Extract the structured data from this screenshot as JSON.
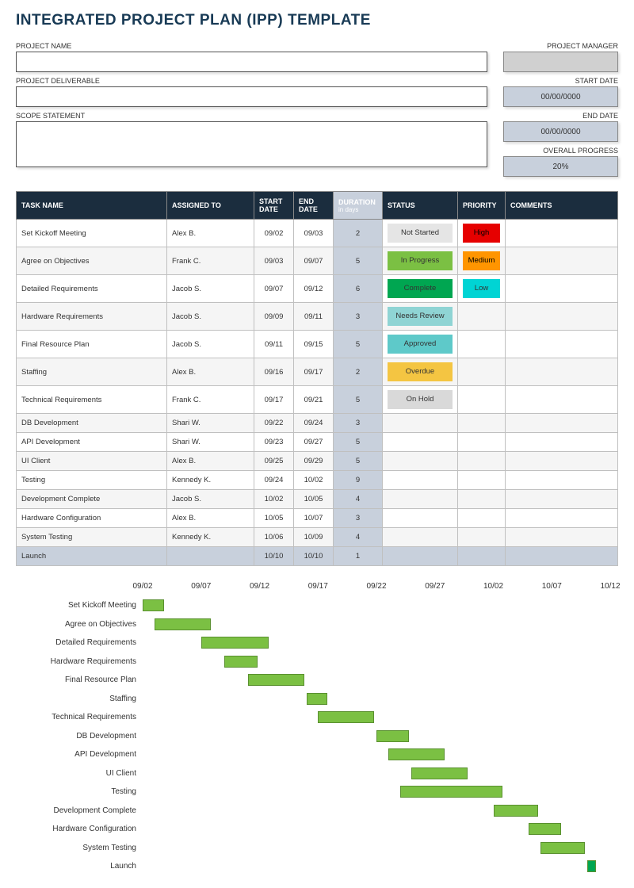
{
  "title": "INTEGRATED PROJECT PLAN (IPP) TEMPLATE",
  "labels": {
    "project_name": "PROJECT NAME",
    "project_deliverable": "PROJECT DELIVERABLE",
    "scope_statement": "SCOPE STATEMENT",
    "project_manager": "PROJECT MANAGER",
    "start_date": "START DATE",
    "end_date": "END DATE",
    "overall_progress": "OVERALL PROGRESS"
  },
  "values": {
    "start_date": "00/00/0000",
    "end_date": "00/00/0000",
    "overall_progress": "20%"
  },
  "table": {
    "headers": {
      "task": "TASK NAME",
      "assigned": "ASSIGNED TO",
      "start": "START DATE",
      "end": "END DATE",
      "duration": "DURATION",
      "duration_sub": "in days",
      "status": "STATUS",
      "priority": "PRIORITY",
      "comments": "COMMENTS"
    },
    "rows": [
      {
        "task": "Set Kickoff Meeting",
        "assigned": "Alex B.",
        "start": "09/02",
        "end": "09/03",
        "duration": "2",
        "status": "Not Started",
        "status_color": "#e5e5e5",
        "priority": "High",
        "priority_color": "#e60000"
      },
      {
        "task": "Agree on Objectives",
        "assigned": "Frank C.",
        "start": "09/03",
        "end": "09/07",
        "duration": "5",
        "status": "In Progress",
        "status_color": "#7bc043",
        "priority": "Medium",
        "priority_color": "#ff9500"
      },
      {
        "task": "Detailed Requirements",
        "assigned": "Jacob S.",
        "start": "09/07",
        "end": "09/12",
        "duration": "6",
        "status": "Complete",
        "status_color": "#00a651",
        "priority": "Low",
        "priority_color": "#00d4d4"
      },
      {
        "task": "Hardware Requirements",
        "assigned": "Jacob S.",
        "start": "09/09",
        "end": "09/11",
        "duration": "3",
        "status": "Needs Review",
        "status_color": "#8fd4d4",
        "priority": "",
        "priority_color": ""
      },
      {
        "task": "Final Resource Plan",
        "assigned": "Jacob S.",
        "start": "09/11",
        "end": "09/15",
        "duration": "5",
        "status": "Approved",
        "status_color": "#5ec9c9",
        "priority": "",
        "priority_color": ""
      },
      {
        "task": "Staffing",
        "assigned": "Alex B.",
        "start": "09/16",
        "end": "09/17",
        "duration": "2",
        "status": "Overdue",
        "status_color": "#f4c542",
        "priority": "",
        "priority_color": ""
      },
      {
        "task": "Technical Requirements",
        "assigned": "Frank C.",
        "start": "09/17",
        "end": "09/21",
        "duration": "5",
        "status": "On Hold",
        "status_color": "#d9d9d9",
        "priority": "",
        "priority_color": ""
      },
      {
        "task": "DB Development",
        "assigned": "Shari W.",
        "start": "09/22",
        "end": "09/24",
        "duration": "3",
        "status": "",
        "status_color": "",
        "priority": "",
        "priority_color": ""
      },
      {
        "task": "API Development",
        "assigned": "Shari W.",
        "start": "09/23",
        "end": "09/27",
        "duration": "5",
        "status": "",
        "status_color": "",
        "priority": "",
        "priority_color": ""
      },
      {
        "task": "UI Client",
        "assigned": "Alex B.",
        "start": "09/25",
        "end": "09/29",
        "duration": "5",
        "status": "",
        "status_color": "",
        "priority": "",
        "priority_color": ""
      },
      {
        "task": "Testing",
        "assigned": "Kennedy K.",
        "start": "09/24",
        "end": "10/02",
        "duration": "9",
        "status": "",
        "status_color": "",
        "priority": "",
        "priority_color": ""
      },
      {
        "task": "Development Complete",
        "assigned": "Jacob S.",
        "start": "10/02",
        "end": "10/05",
        "duration": "4",
        "status": "",
        "status_color": "",
        "priority": "",
        "priority_color": ""
      },
      {
        "task": "Hardware Configuration",
        "assigned": "Alex B.",
        "start": "10/05",
        "end": "10/07",
        "duration": "3",
        "status": "",
        "status_color": "",
        "priority": "",
        "priority_color": ""
      },
      {
        "task": "System Testing",
        "assigned": "Kennedy K.",
        "start": "10/06",
        "end": "10/09",
        "duration": "4",
        "status": "",
        "status_color": "",
        "priority": "",
        "priority_color": ""
      },
      {
        "task": "Launch",
        "assigned": "",
        "start": "10/10",
        "end": "10/10",
        "duration": "1",
        "status": "",
        "status_color": "",
        "priority": "",
        "priority_color": "",
        "last": true
      }
    ]
  },
  "gantt": {
    "axis_min_day": 2,
    "axis_max_day": 42,
    "ticks": [
      {
        "label": "09/02",
        "day": 2
      },
      {
        "label": "09/07",
        "day": 7
      },
      {
        "label": "09/12",
        "day": 12
      },
      {
        "label": "09/17",
        "day": 17
      },
      {
        "label": "09/22",
        "day": 22
      },
      {
        "label": "09/27",
        "day": 27
      },
      {
        "label": "10/02",
        "day": 32
      },
      {
        "label": "10/07",
        "day": 37
      },
      {
        "label": "10/12",
        "day": 42
      }
    ],
    "bar_color": "#7bc043",
    "launch_bar_color": "#00a651",
    "bars": [
      {
        "label": "Set Kickoff Meeting",
        "start": 2,
        "end": 3.8
      },
      {
        "label": "Agree on Objectives",
        "start": 3,
        "end": 7.8
      },
      {
        "label": "Detailed Requirements",
        "start": 7,
        "end": 12.8
      },
      {
        "label": "Hardware Requirements",
        "start": 9,
        "end": 11.8
      },
      {
        "label": "Final Resource Plan",
        "start": 11,
        "end": 15.8
      },
      {
        "label": "Staffing",
        "start": 16,
        "end": 17.8
      },
      {
        "label": "Technical Requirements",
        "start": 17,
        "end": 21.8
      },
      {
        "label": "DB Development",
        "start": 22,
        "end": 24.8
      },
      {
        "label": "API Development",
        "start": 23,
        "end": 27.8
      },
      {
        "label": "UI Client",
        "start": 25,
        "end": 29.8
      },
      {
        "label": "Testing",
        "start": 24,
        "end": 32.8
      },
      {
        "label": "Development Complete",
        "start": 32,
        "end": 35.8
      },
      {
        "label": "Hardware Configuration",
        "start": 35,
        "end": 37.8
      },
      {
        "label": "System Testing",
        "start": 36,
        "end": 39.8
      },
      {
        "label": "Launch",
        "start": 40,
        "end": 40.8,
        "color": "#00a651"
      }
    ]
  }
}
